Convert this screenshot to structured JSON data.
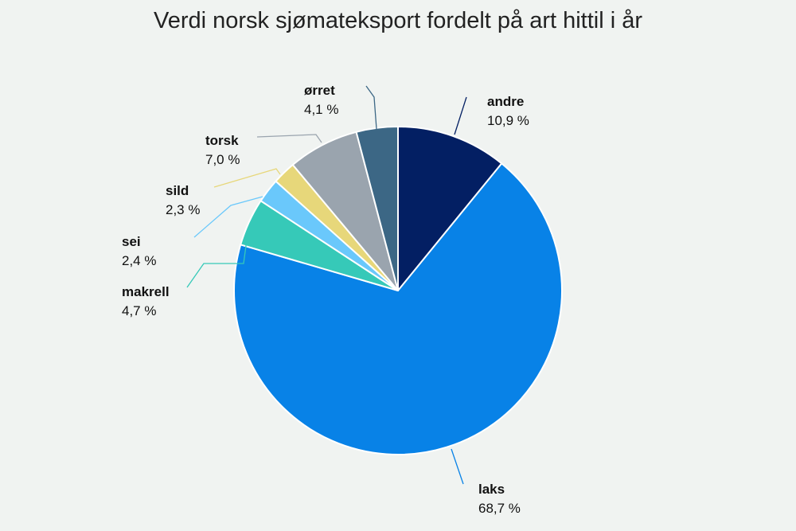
{
  "chart_data": {
    "type": "pie",
    "title": "Verdi norsk sjømateksport fordelt på art hittil i år",
    "slices": [
      {
        "label": "andre",
        "value": 10.9,
        "value_label": "10,9 %",
        "color": "#031f63"
      },
      {
        "label": "laks",
        "value": 68.7,
        "value_label": "68,7 %",
        "color": "#0882e7"
      },
      {
        "label": "makrell",
        "value": 4.7,
        "value_label": "4,7 %",
        "color": "#36c9b8"
      },
      {
        "label": "sei",
        "value": 2.4,
        "value_label": "2,4 %",
        "color": "#6ac8fb"
      },
      {
        "label": "sild",
        "value": 2.3,
        "value_label": "2,3 %",
        "color": "#e7d77a"
      },
      {
        "label": "torsk",
        "value": 7.0,
        "value_label": "7,0 %",
        "color": "#9aa4ae"
      },
      {
        "label": "ørret",
        "value": 4.1,
        "value_label": "4,1 %",
        "color": "#3c6785"
      }
    ]
  }
}
